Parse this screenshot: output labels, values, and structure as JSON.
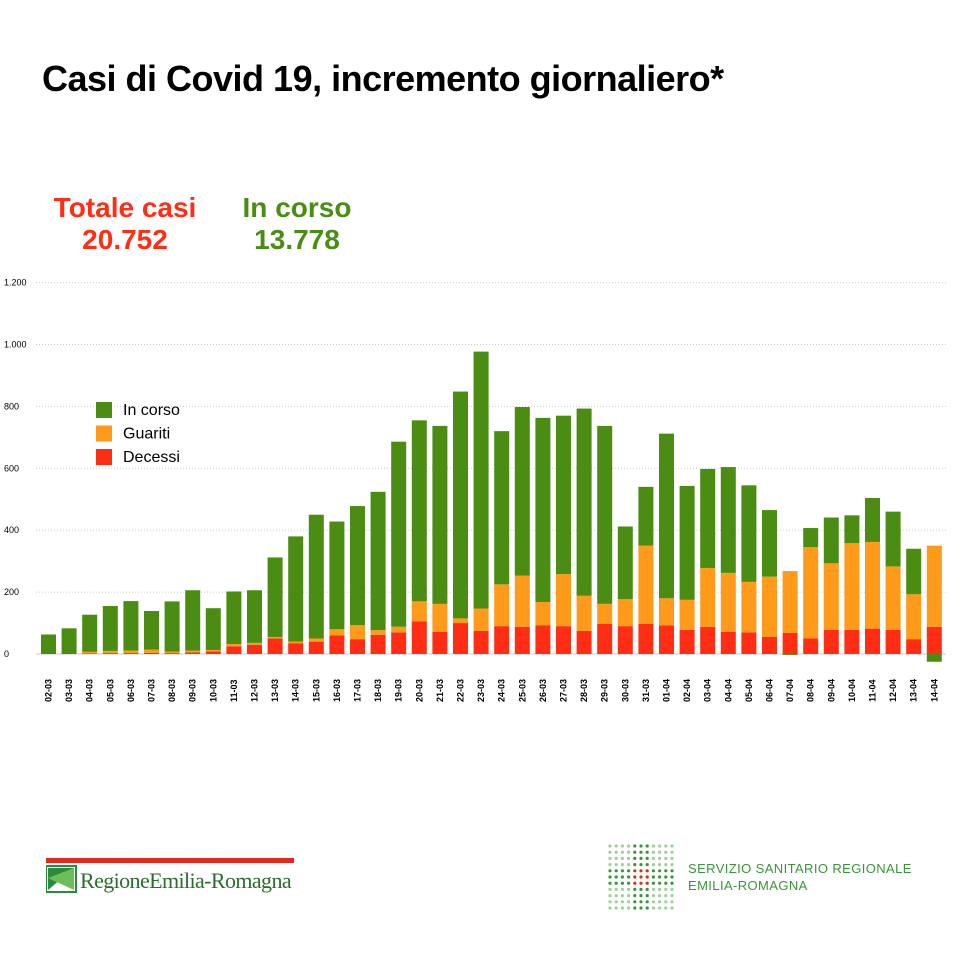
{
  "title": "Casi di Covid 19, incremento giornaliero*",
  "stats": {
    "total_label": "Totale casi",
    "total_value": "20.752",
    "in_corso_label": "In corso",
    "in_corso_value": "13.778"
  },
  "colors": {
    "in_corso": "#4a8d12",
    "guariti": "#ff9a1a",
    "decessi": "#ff2d14",
    "grid": "#cccccc"
  },
  "footer": {
    "region_logo_text": "RegioneEmilia-Romagna",
    "ssr_line1": "SERVIZIO SANITARIO REGIONALE",
    "ssr_line2": "EMILIA-ROMAGNA"
  },
  "chart_data": {
    "type": "bar",
    "stacked": true,
    "title": "Casi di Covid 19, incremento giornaliero*",
    "ylim": [
      0,
      1200
    ],
    "yticks": [
      0,
      200,
      400,
      600,
      800,
      1000,
      1200
    ],
    "ytick_labels": [
      "0",
      "200",
      "400",
      "600",
      "800",
      "1.000",
      "1.200"
    ],
    "grid": true,
    "legend_position": "top-left",
    "categories": [
      "02-03",
      "03-03",
      "04-03",
      "05-03",
      "06-03",
      "07-03",
      "08-03",
      "09-03",
      "10-03",
      "11-03",
      "12-03",
      "13-03",
      "14-03",
      "15-03",
      "16-03",
      "17-03",
      "18-03",
      "19-03",
      "20-03",
      "21-03",
      "22-03",
      "23-03",
      "24-03",
      "25-03",
      "26-03",
      "27-03",
      "28-03",
      "29-03",
      "30-03",
      "31-03",
      "01-04",
      "02-04",
      "03-04",
      "04-04",
      "05-04",
      "06-04",
      "07-04",
      "08-04",
      "09-04",
      "10-04",
      "11-04",
      "12-04",
      "13-04",
      "14-04"
    ],
    "series": [
      {
        "name": "Decessi",
        "color": "#ff2d14",
        "values": [
          0,
          0,
          2,
          3,
          3,
          4,
          3,
          5,
          8,
          25,
          30,
          50,
          35,
          40,
          60,
          48,
          62,
          70,
          105,
          72,
          100,
          75,
          90,
          88,
          93,
          90,
          75,
          97,
          90,
          97,
          92,
          78,
          88,
          72,
          70,
          55,
          68,
          50,
          78,
          78,
          82,
          78,
          48,
          88
        ]
      },
      {
        "name": "Guariti",
        "color": "#ff9a1a",
        "values": [
          0,
          0,
          5,
          7,
          8,
          10,
          5,
          6,
          5,
          7,
          6,
          5,
          5,
          10,
          20,
          45,
          15,
          18,
          65,
          90,
          15,
          72,
          135,
          165,
          75,
          168,
          113,
          65,
          87,
          253,
          88,
          97,
          190,
          190,
          163,
          195,
          200,
          295,
          215,
          280,
          280,
          205,
          145,
          262
        ]
      },
      {
        "name": "In corso",
        "color": "#4a8d12",
        "values": [
          63,
          83,
          120,
          145,
          160,
          125,
          162,
          195,
          135,
          170,
          170,
          257,
          340,
          400,
          348,
          385,
          447,
          598,
          585,
          575,
          733,
          830,
          495,
          545,
          595,
          512,
          605,
          575,
          235,
          190,
          532,
          368,
          320,
          342,
          312,
          215,
          -3,
          62,
          148,
          90,
          142,
          177,
          147,
          -25
        ]
      }
    ],
    "legend_order": [
      "In corso",
      "Guariti",
      "Decessi"
    ]
  }
}
